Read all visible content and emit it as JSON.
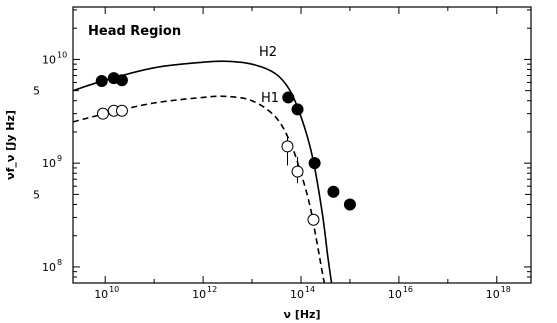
{
  "chart_data": {
    "type": "scatter",
    "title": "",
    "annotation": "Head Region",
    "xlabel": "ν [Hz]",
    "ylabel": "νf_ν [Jy Hz]",
    "xscale": "log",
    "yscale": "log",
    "xlim": [
      2200000000.0,
      5e+18
    ],
    "ylim": [
      70000000.0,
      32000000000.0
    ],
    "grid": false,
    "x_ticks": [
      {
        "value": 10000000000.0,
        "label": "10"
      },
      {
        "value": 1000000000000.0,
        "label": "10"
      },
      {
        "value": 100000000000000.0,
        "label": "10"
      },
      {
        "value": 1e+16,
        "label": "10"
      },
      {
        "value": 1e+18,
        "label": "10"
      }
    ],
    "x_tick_exponents": [
      "10",
      "12",
      "14",
      "16",
      "18"
    ],
    "y_ticks": [
      {
        "value": 100000000.0,
        "label": "10",
        "exp": "8"
      },
      {
        "value": 500000000.0,
        "label": "5",
        "exp": ""
      },
      {
        "value": 1000000000.0,
        "label": "10",
        "exp": "9"
      },
      {
        "value": 5000000000.0,
        "label": "5",
        "exp": ""
      },
      {
        "value": 10000000000.0,
        "label": "10",
        "exp": "10"
      }
    ],
    "series": [
      {
        "name": "H2",
        "marker": "filled-circle",
        "line_style": "solid",
        "points": [
          {
            "x": 8500000000.0,
            "y": 6200000000.0
          },
          {
            "x": 15000000000.0,
            "y": 6600000000.0
          },
          {
            "x": 22000000000.0,
            "y": 6300000000.0
          },
          {
            "x": 55000000000000.0,
            "y": 4300000000.0
          },
          {
            "x": 85000000000000.0,
            "y": 3300000000.0
          },
          {
            "x": 190000000000000.0,
            "y": 1000000000.0
          },
          {
            "x": 460000000000000.0,
            "y": 530000000.0
          },
          {
            "x": 1000000000000000.0,
            "y": 400000000.0
          }
        ],
        "model_curve": [
          {
            "x": 2200000000.0,
            "y": 5000000000.0
          },
          {
            "x": 10000000000.0,
            "y": 6300000000.0
          },
          {
            "x": 100000000000.0,
            "y": 8300000000.0
          },
          {
            "x": 1000000000000.0,
            "y": 9400000000.0
          },
          {
            "x": 3000000000000.0,
            "y": 9600000000.0
          },
          {
            "x": 10000000000000.0,
            "y": 9000000000.0
          },
          {
            "x": 30000000000000.0,
            "y": 7300000000.0
          },
          {
            "x": 60000000000000.0,
            "y": 5000000000.0
          },
          {
            "x": 100000000000000.0,
            "y": 2800000000.0
          },
          {
            "x": 150000000000000.0,
            "y": 1500000000.0
          },
          {
            "x": 200000000000000.0,
            "y": 800000000.0
          },
          {
            "x": 280000000000000.0,
            "y": 300000000.0
          },
          {
            "x": 350000000000000.0,
            "y": 130000000.0
          },
          {
            "x": 420000000000000.0,
            "y": 70000000.0
          }
        ]
      },
      {
        "name": "H1",
        "marker": "open-circle",
        "line_style": "dashed",
        "points": [
          {
            "x": 9000000000.0,
            "y": 3000000000.0,
            "err": [
              2800000000.0,
              3300000000.0
            ]
          },
          {
            "x": 15000000000.0,
            "y": 3200000000.0,
            "err": [
              3000000000.0,
              3500000000.0
            ]
          },
          {
            "x": 22000000000.0,
            "y": 3200000000.0,
            "err": [
              3000000000.0,
              3500000000.0
            ]
          },
          {
            "x": 53000000000000.0,
            "y": 1450000000.0,
            "err": [
              950000000.0,
              1850000000.0
            ]
          },
          {
            "x": 85000000000000.0,
            "y": 830000000.0,
            "err": [
              640000000.0,
              1150000000.0
            ]
          },
          {
            "x": 180000000000000.0,
            "y": 285000000.0,
            "err": [
              260000000.0,
              320000000.0
            ]
          }
        ],
        "model_curve": [
          {
            "x": 2200000000.0,
            "y": 2500000000.0
          },
          {
            "x": 10000000000.0,
            "y": 3000000000.0
          },
          {
            "x": 100000000000.0,
            "y": 3800000000.0
          },
          {
            "x": 1000000000000.0,
            "y": 4300000000.0
          },
          {
            "x": 3000000000000.0,
            "y": 4400000000.0
          },
          {
            "x": 10000000000000.0,
            "y": 4000000000.0
          },
          {
            "x": 30000000000000.0,
            "y": 2800000000.0
          },
          {
            "x": 60000000000000.0,
            "y": 1600000000.0
          },
          {
            "x": 100000000000000.0,
            "y": 800000000.0
          },
          {
            "x": 150000000000000.0,
            "y": 400000000.0
          },
          {
            "x": 200000000000000.0,
            "y": 200000000.0
          },
          {
            "x": 260000000000000.0,
            "y": 100000000.0
          },
          {
            "x": 300000000000000.0,
            "y": 70000000.0
          }
        ]
      }
    ]
  }
}
